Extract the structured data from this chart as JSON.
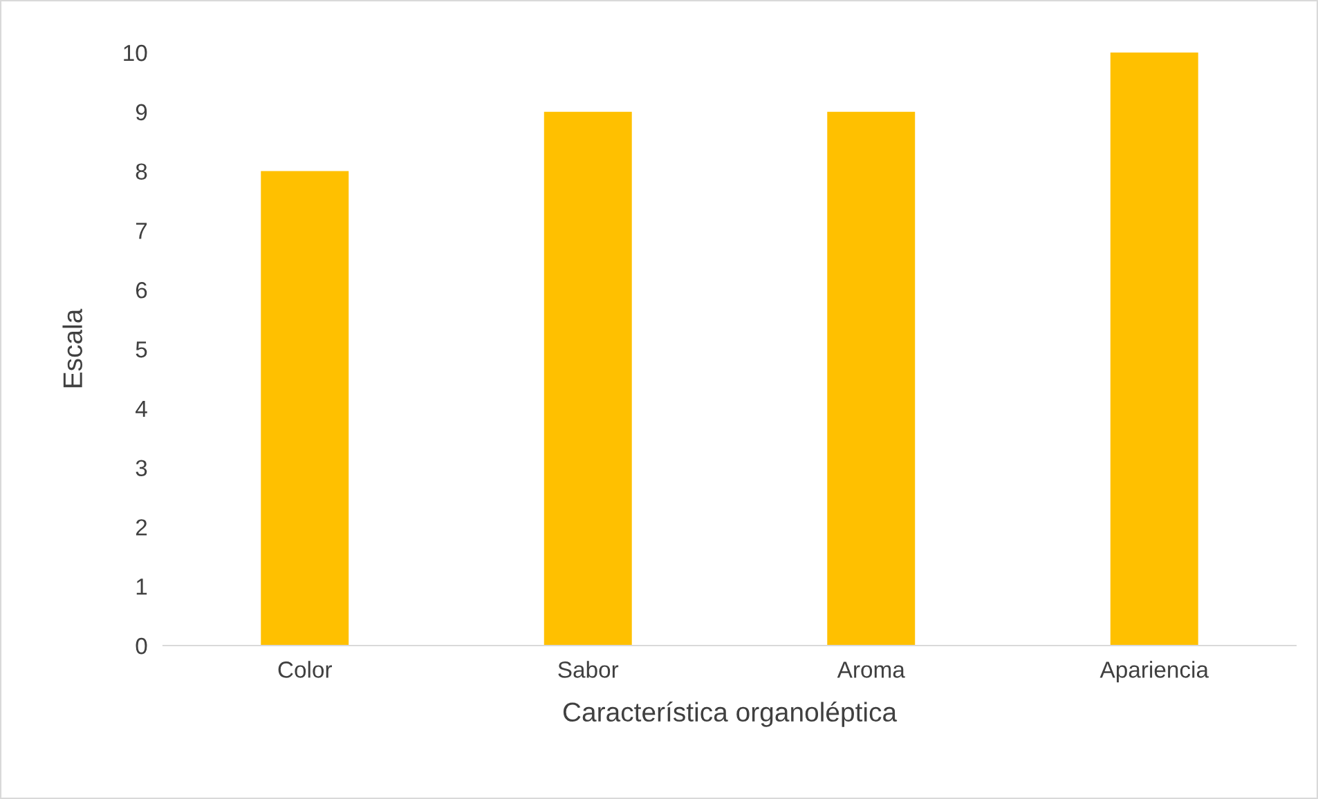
{
  "chart_data": {
    "type": "bar",
    "xlabel": "Característica organoléptica",
    "ylabel": "Escala",
    "categories": [
      "Color",
      "Sabor",
      "Aroma",
      "Apariencia"
    ],
    "values": [
      8,
      9,
      9,
      10
    ],
    "color": "#ffc000",
    "ylim": [
      0,
      10
    ],
    "yticks": [
      0,
      1,
      2,
      3,
      4,
      5,
      6,
      7,
      8,
      9,
      10
    ],
    "grid": false,
    "legend": false
  }
}
